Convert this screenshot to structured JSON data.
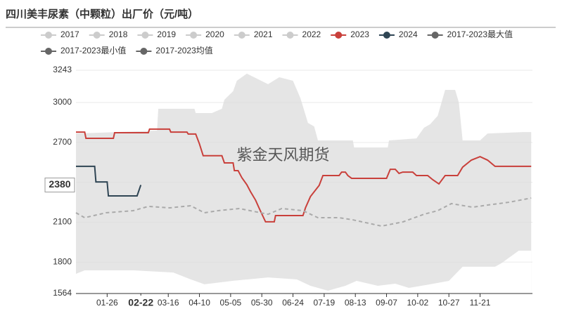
{
  "chart_data": {
    "type": "line",
    "title": "四川美丰尿素（中颗粒）出厂价（元/吨）",
    "watermark": "紫金天风期货",
    "hidden_series": [
      {
        "name": "2017",
        "color": "#cccccc"
      },
      {
        "name": "2018",
        "color": "#cccccc"
      },
      {
        "name": "2019",
        "color": "#cccccc"
      },
      {
        "name": "2020",
        "color": "#cccccc"
      },
      {
        "name": "2021",
        "color": "#cccccc"
      },
      {
        "name": "2022",
        "color": "#cccccc"
      }
    ],
    "series": [
      {
        "name": "2023",
        "color": "#c9403b",
        "draw": "line",
        "x": [
          1,
          8,
          9,
          31,
          32,
          59,
          60,
          76,
          77,
          90,
          91,
          97,
          100,
          103,
          118,
          120,
          127,
          128,
          131,
          134,
          138,
          141,
          145,
          148,
          153,
          160,
          161,
          183,
          185,
          189,
          196,
          199,
          212,
          214,
          217,
          219,
          222,
          250,
          253,
          257,
          260,
          263,
          271,
          274,
          283,
          287,
          292,
          297,
          307,
          311,
          318,
          325,
          331,
          337,
          366
        ],
        "values": [
          2778,
          2778,
          2731,
          2731,
          2773,
          2773,
          2800,
          2800,
          2778,
          2778,
          2763,
          2763,
          2689,
          2600,
          2600,
          2546,
          2546,
          2488,
          2488,
          2435,
          2382,
          2329,
          2266,
          2203,
          2103,
          2103,
          2150,
          2150,
          2208,
          2293,
          2377,
          2451,
          2451,
          2477,
          2477,
          2451,
          2430,
          2430,
          2498,
          2498,
          2467,
          2477,
          2477,
          2451,
          2451,
          2420,
          2388,
          2451,
          2451,
          2514,
          2567,
          2593,
          2567,
          2520,
          2520
        ]
      },
      {
        "name": "2024",
        "color": "#2f4554",
        "draw": "line",
        "x": [
          1,
          16,
          17,
          26,
          27,
          50,
          53
        ],
        "values": [
          2520,
          2520,
          2403,
          2403,
          2298,
          2298,
          2380
        ]
      },
      {
        "name": "2017-2023最大值",
        "color": "#666666",
        "draw": "band-max",
        "fill": "#e5e5e5",
        "x": [
          1,
          66,
          67,
          96,
          97,
          110,
          118,
          120,
          127,
          130,
          138,
          155,
          164,
          175,
          181,
          187,
          192,
          195,
          223,
          224,
          251,
          252,
          274,
          280,
          285,
          291,
          297,
          305,
          308,
          311,
          325,
          331,
          359,
          366
        ],
        "values": [
          2767,
          2789,
          2953,
          2953,
          2921,
          2921,
          2953,
          3021,
          3085,
          3164,
          3217,
          3138,
          3190,
          3164,
          3032,
          2847,
          2820,
          2715,
          2715,
          2662,
          2662,
          2715,
          2730,
          2810,
          2837,
          2900,
          3095,
          3095,
          3000,
          2715,
          2715,
          2767,
          2778,
          2778
        ]
      },
      {
        "name": "2017-2023最小值",
        "color": "#666666",
        "draw": "band-min",
        "fill": "#ffffff",
        "x": [
          1,
          8,
          47,
          79,
          93,
          104,
          127,
          155,
          178,
          189,
          203,
          217,
          226,
          243,
          257,
          268,
          285,
          300,
          311,
          337,
          342,
          356,
          366
        ],
        "values": [
          1712,
          1738,
          1738,
          1722,
          1670,
          1633,
          1660,
          1685,
          1670,
          1622,
          1585,
          1622,
          1659,
          1622,
          1638,
          1606,
          1633,
          1659,
          1765,
          1765,
          1791,
          1886,
          1886
        ]
      },
      {
        "name": "2017-2023均值",
        "color": "#666666",
        "line_color": "#aaaaaa",
        "draw": "dashed",
        "x": [
          1,
          8,
          25,
          47,
          59,
          76,
          93,
          104,
          115,
          132,
          155,
          166,
          183,
          195,
          212,
          223,
          246,
          263,
          280,
          291,
          302,
          319,
          331,
          348,
          366
        ],
        "values": [
          2171,
          2134,
          2171,
          2187,
          2219,
          2208,
          2224,
          2171,
          2187,
          2203,
          2160,
          2203,
          2187,
          2134,
          2134,
          2118,
          2071,
          2102,
          2160,
          2187,
          2240,
          2213,
          2229,
          2250,
          2282
        ]
      }
    ],
    "xlim": [
      1,
      367
    ],
    "xticks": [
      {
        "value": 26,
        "label": "01-26"
      },
      {
        "value": 53,
        "label": "02-22"
      },
      {
        "value": 75,
        "label": "03-16"
      },
      {
        "value": 100,
        "label": "04-10"
      },
      {
        "value": 125,
        "label": "05-05"
      },
      {
        "value": 150,
        "label": "05-30"
      },
      {
        "value": 175,
        "label": "06-24"
      },
      {
        "value": 200,
        "label": "07-19"
      },
      {
        "value": 225,
        "label": "08-13"
      },
      {
        "value": 250,
        "label": "09-07"
      },
      {
        "value": 275,
        "label": "10-02"
      },
      {
        "value": 300,
        "label": "10-27"
      },
      {
        "value": 325,
        "label": "11-21"
      }
    ],
    "ylim": [
      1564,
      3243
    ],
    "yticks": [
      1564,
      1800,
      2100,
      2400,
      2700,
      3000,
      3243
    ],
    "grid": true,
    "crosshair": {
      "x": 53,
      "x_label": "02-22",
      "y": 2380
    }
  }
}
